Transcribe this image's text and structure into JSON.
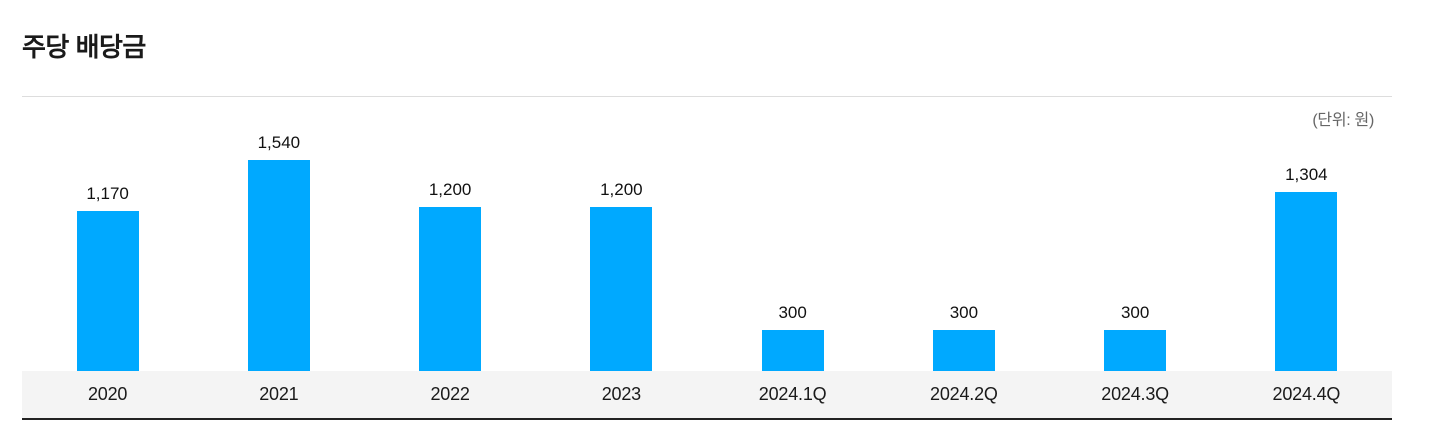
{
  "page": {
    "title": "주당 배당금",
    "unit_label": "(단위: 원)"
  },
  "chart_data": {
    "type": "bar",
    "title": "주당 배당금",
    "unit": "(단위: 원)",
    "categories": [
      "2020",
      "2021",
      "2022",
      "2023",
      "2024.1Q",
      "2024.2Q",
      "2024.3Q",
      "2024.4Q"
    ],
    "values": [
      1170,
      1540,
      1200,
      1200,
      300,
      300,
      300,
      1304
    ],
    "value_labels": [
      "1,170",
      "1,540",
      "1,200",
      "1,200",
      "300",
      "300",
      "300",
      "1,304"
    ],
    "bar_color": "#00a9ff",
    "axis_band_color": "#f4f4f4",
    "baseline_color": "#222222",
    "xlabel": "",
    "ylabel": "",
    "ylim": [
      0,
      1760
    ],
    "grid": false,
    "legend": false,
    "value_labels_shown": true
  }
}
